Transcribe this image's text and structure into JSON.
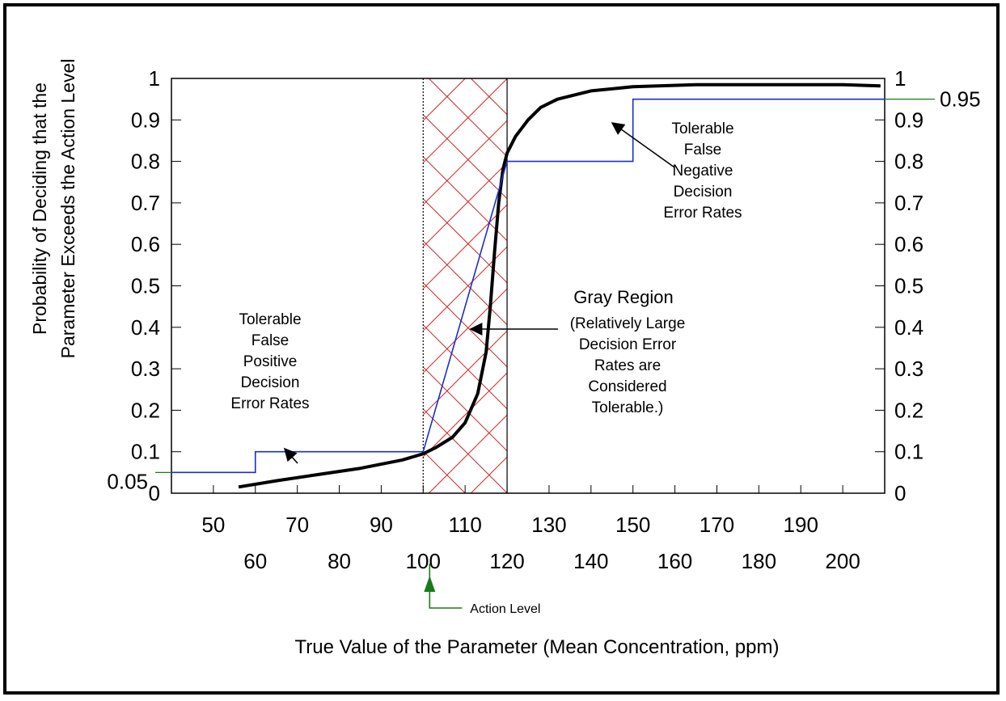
{
  "chart_data": {
    "type": "line",
    "xlabel": "True Value of  the Parameter (Mean Concentration, ppm)",
    "ylabel_line1": "Probability of Deciding that the",
    "ylabel_line2": "Parameter Exceeds the Action Level",
    "xlim": [
      40,
      210
    ],
    "ylim": [
      0,
      1
    ],
    "x_ticks_upper": [
      "50",
      "70",
      "90",
      "110",
      "130",
      "150",
      "170",
      "190"
    ],
    "x_ticks_lower": [
      "60",
      "80",
      "100",
      "120",
      "140",
      "160",
      "180",
      "200"
    ],
    "y_ticks_left": [
      "0",
      "0.1",
      "0.2",
      "0.3",
      "0.4",
      "0.5",
      "0.6",
      "0.7",
      "0.8",
      "0.9",
      "1"
    ],
    "y_ticks_right": [
      "0",
      "0.1",
      "0.2",
      "0.3",
      "0.4",
      "0.5",
      "0.6",
      "0.7",
      "0.8",
      "0.9",
      "1"
    ],
    "extra_labels": {
      "left_0_05": "0.05",
      "right_0_95": "0.95"
    },
    "gray_region": {
      "x_start": 100,
      "x_end": 120,
      "color": "#cc2222"
    },
    "action_level": {
      "x": 100,
      "label": "Action Level",
      "color": "#1a7a1a"
    },
    "series": [
      {
        "color": "#000000",
        "x": [
          56,
          65,
          75,
          85,
          95,
          100,
          103,
          107,
          110,
          113,
          115,
          116,
          117,
          118,
          119,
          120,
          122,
          125,
          128,
          132,
          140,
          150,
          165,
          185,
          200,
          209
        ],
        "y": [
          0.015,
          0.03,
          0.045,
          0.06,
          0.08,
          0.095,
          0.11,
          0.135,
          0.17,
          0.24,
          0.34,
          0.45,
          0.58,
          0.7,
          0.78,
          0.82,
          0.86,
          0.9,
          0.93,
          0.95,
          0.97,
          0.98,
          0.985,
          0.985,
          0.985,
          0.982
        ]
      },
      {
        "color": "#1a2ecc",
        "step": true,
        "x": [
          40,
          60,
          60,
          100,
          120,
          120,
          150,
          150,
          210
        ],
        "y": [
          0.05,
          0.05,
          0.1,
          0.1,
          0.8,
          0.8,
          0.8,
          0.95,
          0.95
        ]
      }
    ],
    "annotations": {
      "false_positive": [
        "Tolerable",
        "False",
        "Positive",
        "Decision",
        "Error Rates"
      ],
      "false_negative": [
        "Tolerable",
        "False",
        "Negative",
        "Decision",
        "Error Rates"
      ],
      "gray_region_title": "Gray Region",
      "gray_region_desc": [
        "(Relatively Large",
        "Decision Error",
        "Rates are",
        "Considered",
        "Tolerable.)"
      ]
    },
    "grid": false,
    "legend": "none"
  }
}
